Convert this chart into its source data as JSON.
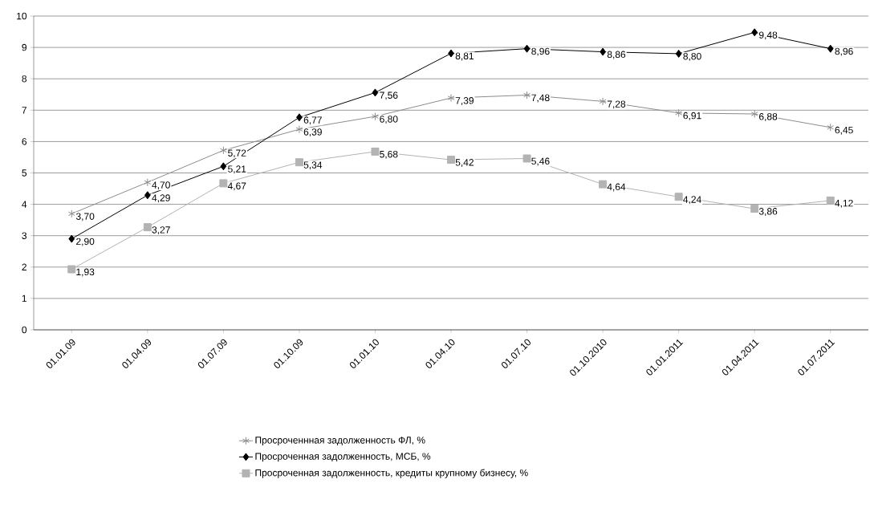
{
  "chart_data": {
    "type": "line",
    "categories": [
      "01.01.09",
      "01.04.09",
      "01.07.09",
      "01.10.09",
      "01.01.10",
      "01.04.10",
      "01.07.10",
      "01.10.2010",
      "01.01.2011",
      "01.04.2011",
      "01.07.2011"
    ],
    "series": [
      {
        "name": "Просроченнная задолженность ФЛ, %",
        "color": "#8c8c8c",
        "marker": "cross",
        "values": [
          3.7,
          4.7,
          5.72,
          6.39,
          6.8,
          7.39,
          7.48,
          7.28,
          6.91,
          6.88,
          6.45
        ],
        "value_labels": [
          "3,70",
          "4,70",
          "5,72",
          "6,39",
          "6,80",
          "7,39",
          "7,48",
          "7,28",
          "6,91",
          "6,88",
          "6,45"
        ]
      },
      {
        "name": "Просроченная задолженность, МСБ, %",
        "color": "#000000",
        "marker": "diamond",
        "values": [
          2.9,
          4.29,
          5.21,
          6.77,
          7.56,
          8.81,
          8.96,
          8.86,
          8.8,
          9.48,
          8.96
        ],
        "value_labels": [
          "2,90",
          "4,29",
          "5,21",
          "6,77",
          "7,56",
          "8,81",
          "8,96",
          "8,86",
          "8,80",
          "9,48",
          "8,96"
        ]
      },
      {
        "name": "Просроченная задолженность, кредиты крупному бизнесу, %",
        "color": "#b3b3b3",
        "marker": "square",
        "values": [
          1.93,
          3.27,
          4.67,
          5.34,
          5.68,
          5.42,
          5.46,
          4.64,
          4.24,
          3.86,
          4.12
        ],
        "value_labels": [
          "1,93",
          "3,27",
          "4,67",
          "5,34",
          "5,68",
          "5,42",
          "5,46",
          "4,64",
          "4,24",
          "3,86",
          "4,12"
        ]
      }
    ],
    "ylim": [
      0,
      10
    ],
    "yticks": [
      0,
      1,
      2,
      3,
      4,
      5,
      6,
      7,
      8,
      9,
      10
    ],
    "grid": "y",
    "legend": "bottom",
    "line_style": "solid"
  }
}
